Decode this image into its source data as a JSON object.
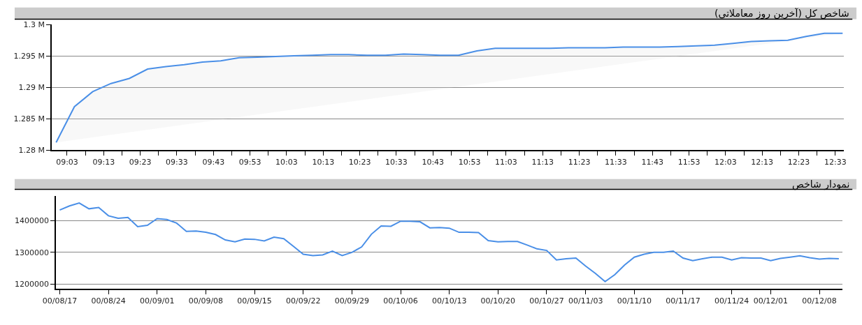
{
  "chart_data": [
    {
      "type": "area",
      "title": "شاخص کل (آخرین روز معاملاتی)",
      "x": [
        9.0,
        9.0833,
        9.1667,
        9.25,
        9.3333,
        9.4167,
        9.5,
        9.5833,
        9.6667,
        9.75,
        9.8333,
        9.9167,
        10.0,
        10.0833,
        10.1667,
        10.25,
        10.3333,
        10.4167,
        10.5,
        10.5833,
        10.6667,
        10.75,
        10.8333,
        10.9167,
        11.0,
        11.0833,
        11.1667,
        11.25,
        11.3333,
        11.4167,
        11.5,
        11.5833,
        11.6667,
        11.75,
        11.8333,
        11.9167,
        12.0,
        12.0833,
        12.1667,
        12.25,
        12.3333,
        12.4167,
        12.5,
        12.5833
      ],
      "series": [
        {
          "color": "#4a8fe7",
          "values": [
            1281200,
            1286900,
            1289300,
            1290600,
            1291400,
            1292900,
            1293300,
            1293600,
            1294000,
            1294200,
            1294700,
            1294800,
            1294900,
            1295000,
            1295100,
            1295200,
            1295200,
            1295100,
            1295100,
            1295300,
            1295200,
            1295100,
            1295100,
            1295800,
            1296200,
            1296200,
            1296200,
            1296200,
            1296300,
            1296300,
            1296300,
            1296400,
            1296400,
            1296400,
            1296500,
            1296600,
            1296700,
            1297000,
            1297300,
            1297400,
            1297500,
            1298100,
            1298600,
            1298600
          ]
        }
      ],
      "xlim": [
        8.98,
        12.59
      ],
      "xticks": [
        {
          "value": 9.05,
          "label": "09:03"
        },
        {
          "value": 9.1333,
          "label": null
        },
        {
          "value": 9.2167,
          "label": "09:13"
        },
        {
          "value": 9.3,
          "label": null
        },
        {
          "value": 9.3833,
          "label": "09:23"
        },
        {
          "value": 9.4667,
          "label": null
        },
        {
          "value": 9.55,
          "label": "09:33"
        },
        {
          "value": 9.6333,
          "label": null
        },
        {
          "value": 9.7167,
          "label": "09:43"
        },
        {
          "value": 9.8,
          "label": null
        },
        {
          "value": 9.8833,
          "label": "09:53"
        },
        {
          "value": 9.9667,
          "label": null
        },
        {
          "value": 10.05,
          "label": "10:03"
        },
        {
          "value": 10.1333,
          "label": null
        },
        {
          "value": 10.2167,
          "label": "10:13"
        },
        {
          "value": 10.3,
          "label": null
        },
        {
          "value": 10.3833,
          "label": "10:23"
        },
        {
          "value": 10.4667,
          "label": null
        },
        {
          "value": 10.55,
          "label": "10:33"
        },
        {
          "value": 10.6333,
          "label": null
        },
        {
          "value": 10.7167,
          "label": "10:43"
        },
        {
          "value": 10.8,
          "label": null
        },
        {
          "value": 10.8833,
          "label": "10:53"
        },
        {
          "value": 10.9667,
          "label": null
        },
        {
          "value": 11.05,
          "label": "11:03"
        },
        {
          "value": 11.1333,
          "label": null
        },
        {
          "value": 11.2167,
          "label": "11:13"
        },
        {
          "value": 11.3,
          "label": null
        },
        {
          "value": 11.3833,
          "label": "11:23"
        },
        {
          "value": 11.4667,
          "label": null
        },
        {
          "value": 11.55,
          "label": "11:33"
        },
        {
          "value": 11.6333,
          "label": null
        },
        {
          "value": 11.7167,
          "label": "11:43"
        },
        {
          "value": 11.8,
          "label": null
        },
        {
          "value": 11.8833,
          "label": "11:53"
        },
        {
          "value": 11.9667,
          "label": null
        },
        {
          "value": 12.05,
          "label": "12:03"
        },
        {
          "value": 12.1333,
          "label": null
        },
        {
          "value": 12.2167,
          "label": "12:13"
        },
        {
          "value": 12.3,
          "label": null
        },
        {
          "value": 12.3833,
          "label": "12:23"
        },
        {
          "value": 12.4667,
          "label": null
        },
        {
          "value": 12.55,
          "label": "12:33"
        }
      ],
      "ylim": [
        1280000,
        1300000
      ],
      "yticks": [
        {
          "value": 1280000,
          "label": "1.28 M"
        },
        {
          "value": 1285000,
          "label": "1.285 M"
        },
        {
          "value": 1290000,
          "label": "1.29 M"
        },
        {
          "value": 1295000,
          "label": "1.295 M"
        },
        {
          "value": 1300000,
          "label": "1.3 M"
        }
      ],
      "grid": "y",
      "marker": "none",
      "line_style": "solid"
    },
    {
      "type": "line",
      "title": "نمودار شاخص",
      "categories": [
        "00/08/17",
        null,
        null,
        null,
        null,
        "00/08/24",
        null,
        null,
        null,
        null,
        "00/09/01",
        null,
        null,
        null,
        null,
        "00/09/08",
        null,
        null,
        null,
        null,
        "00/09/15",
        null,
        null,
        null,
        null,
        "00/09/22",
        null,
        null,
        null,
        null,
        "00/09/29",
        null,
        null,
        null,
        null,
        "00/10/06",
        null,
        null,
        null,
        null,
        "00/10/13",
        null,
        null,
        null,
        null,
        "00/10/20",
        null,
        null,
        null,
        null,
        "00/10/27",
        null,
        null,
        null,
        "00/11/03",
        null,
        null,
        null,
        null,
        "00/11/10",
        null,
        null,
        null,
        null,
        "00/11/17",
        null,
        null,
        null,
        null,
        "00/11/24",
        null,
        null,
        null,
        "00/12/01",
        null,
        null,
        null,
        null,
        "00/12/08",
        null,
        null
      ],
      "series": [
        {
          "color": "#4a8fe7",
          "values": [
            1433000,
            1446000,
            1455000,
            1437000,
            1441000,
            1415000,
            1407000,
            1410000,
            1381000,
            1385000,
            1406000,
            1403000,
            1392000,
            1366000,
            1367000,
            1363000,
            1356000,
            1339000,
            1333000,
            1342000,
            1341000,
            1336000,
            1348000,
            1343000,
            1319000,
            1294000,
            1290000,
            1292000,
            1304000,
            1290000,
            1300000,
            1317000,
            1357000,
            1383000,
            1382000,
            1398000,
            1398000,
            1396000,
            1377000,
            1378000,
            1376000,
            1363000,
            1363000,
            1362000,
            1337000,
            1333000,
            1334000,
            1334000,
            1323000,
            1311000,
            1306000,
            1276000,
            1280000,
            1282000,
            1257000,
            1234000,
            1208000,
            1230000,
            1260000,
            1285000,
            1294000,
            1300000,
            1300000,
            1304000,
            1282000,
            1274000,
            1280000,
            1285000,
            1285000,
            1276000,
            1283000,
            1282000,
            1282000,
            1274000,
            1281000,
            1285000,
            1289000,
            1283000,
            1279000,
            1281000,
            1280000
          ]
        }
      ],
      "ylim": [
        1185000,
        1477000
      ],
      "yticks": [
        1200000,
        1300000,
        1400000
      ],
      "grid": "y",
      "marker": "none",
      "line_style": "solid"
    }
  ]
}
